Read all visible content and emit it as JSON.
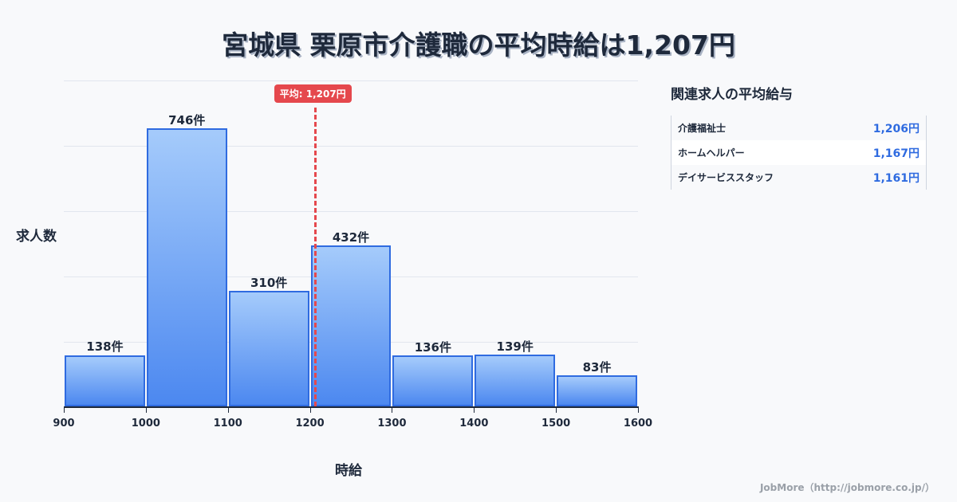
{
  "title": "宮城県 栗原市介護職の平均時給は1,207円",
  "chart_data": {
    "type": "bar",
    "title": "宮城県 栗原市介護職の平均時給は1,207円",
    "xlabel": "時給",
    "ylabel": "求人数",
    "bins": [
      [
        900,
        1000
      ],
      [
        1000,
        1100
      ],
      [
        1100,
        1200
      ],
      [
        1200,
        1300
      ],
      [
        1300,
        1400
      ],
      [
        1400,
        1500
      ],
      [
        1500,
        1600
      ]
    ],
    "categories": [
      "900-1000",
      "1000-1100",
      "1100-1200",
      "1200-1300",
      "1300-1400",
      "1400-1500",
      "1500-1600"
    ],
    "values": [
      138,
      746,
      310,
      432,
      136,
      139,
      83
    ],
    "value_labels": [
      "138件",
      "746件",
      "310件",
      "432件",
      "136件",
      "139件",
      "83件"
    ],
    "x_ticks": [
      "900",
      "1000",
      "1100",
      "1200",
      "1300",
      "1400",
      "1500",
      "1600"
    ],
    "xlim": [
      900,
      1600
    ],
    "ylim": [
      0,
      875
    ],
    "grid": true,
    "average": {
      "value": 1207,
      "label": "平均: 1,207円",
      "color": "#e5484d"
    },
    "bar_color": "#4c88f0",
    "bar_border": "#2f6be0"
  },
  "axes": {
    "ylabel": "求人数",
    "xlabel": "時給"
  },
  "average_badge": "平均: 1,207円",
  "related": {
    "title": "関連求人の平均給与",
    "rows": [
      {
        "name": "介護福祉士",
        "value": "1,206円"
      },
      {
        "name": "ホームヘルパー",
        "value": "1,167円"
      },
      {
        "name": "デイサービススタッフ",
        "value": "1,161円"
      }
    ]
  },
  "footer": "JobMore（http://jobmore.co.jp/）"
}
